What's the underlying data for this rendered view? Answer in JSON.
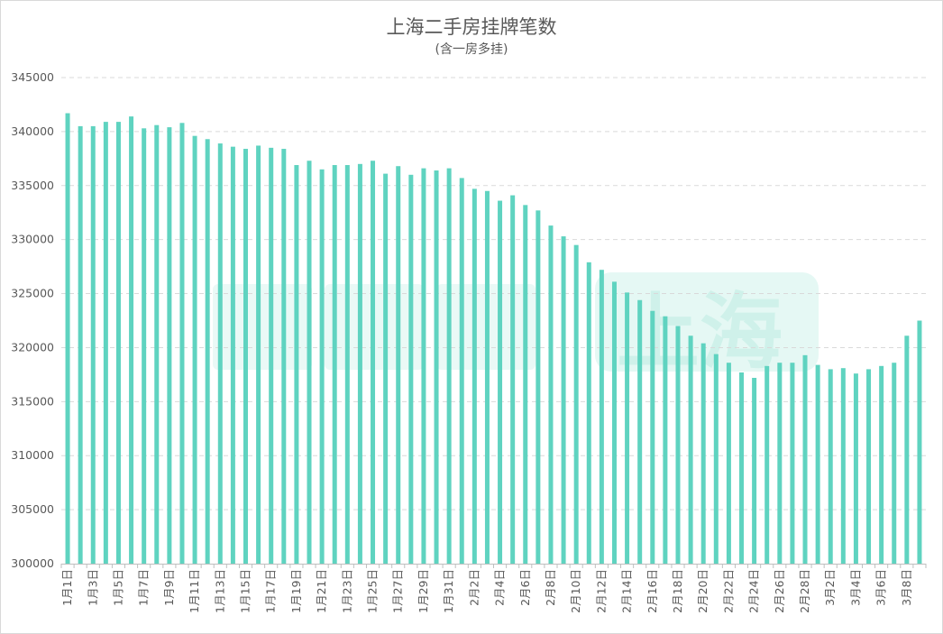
{
  "chart_data": {
    "type": "bar",
    "title": "上海二手房挂牌笔数",
    "subtitle": "(含一房多挂)",
    "xlabel": "",
    "ylabel": "",
    "ylim": [
      300000,
      345000
    ],
    "yticks": [
      "300000",
      "305000",
      "310000",
      "315000",
      "320000",
      "325000",
      "330000",
      "335000",
      "340000",
      "345000"
    ],
    "grid": true,
    "bar_color": "#5fd3c0",
    "categories": [
      "1月1日",
      "1月2日",
      "1月3日",
      "1月4日",
      "1月5日",
      "1月6日",
      "1月7日",
      "1月8日",
      "1月9日",
      "1月10日",
      "1月11日",
      "1月12日",
      "1月13日",
      "1月14日",
      "1月15日",
      "1月16日",
      "1月17日",
      "1月18日",
      "1月19日",
      "1月20日",
      "1月21日",
      "1月22日",
      "1月23日",
      "1月24日",
      "1月25日",
      "1月26日",
      "1月27日",
      "1月28日",
      "1月29日",
      "1月30日",
      "1月31日",
      "2月1日",
      "2月2日",
      "2月3日",
      "2月4日",
      "2月5日",
      "2月6日",
      "2月7日",
      "2月8日",
      "2月9日",
      "2月10日",
      "2月11日",
      "2月12日",
      "2月13日",
      "2月14日",
      "2月15日",
      "2月16日",
      "2月17日",
      "2月18日",
      "2月19日",
      "2月20日",
      "2月21日",
      "2月22日",
      "2月23日",
      "2月24日",
      "2月25日",
      "2月26日",
      "2月27日",
      "2月28日",
      "3月1日",
      "3月2日",
      "3月3日",
      "3月4日",
      "3月5日",
      "3月6日",
      "3月7日",
      "3月8日",
      "3月9日"
    ],
    "x_tick_labels": [
      "1月1日",
      "1月3日",
      "1月5日",
      "1月7日",
      "1月9日",
      "1月11日",
      "1月13日",
      "1月15日",
      "1月17日",
      "1月19日",
      "1月21日",
      "1月23日",
      "1月25日",
      "1月27日",
      "1月29日",
      "1月31日",
      "2月2日",
      "2月4日",
      "2月6日",
      "2月8日",
      "2月10日",
      "2月12日",
      "2月14日",
      "2月16日",
      "2月18日",
      "2月20日",
      "2月22日",
      "2月24日",
      "2月26日",
      "2月28日",
      "3月2日",
      "3月4日",
      "3月6日",
      "3月8日"
    ],
    "values": [
      341700,
      340500,
      340500,
      340900,
      340900,
      341400,
      340300,
      340600,
      340400,
      340800,
      339600,
      339300,
      338900,
      338600,
      338400,
      338700,
      338500,
      338400,
      336900,
      337300,
      336500,
      336900,
      336900,
      337000,
      337300,
      336100,
      336800,
      336000,
      336600,
      336400,
      336600,
      335700,
      334700,
      334500,
      333600,
      334100,
      333200,
      332700,
      331300,
      330300,
      329500,
      327900,
      327200,
      326100,
      325100,
      324400,
      323400,
      322900,
      322000,
      321100,
      320400,
      319400,
      318600,
      317700,
      317200,
      318300,
      318600,
      318600,
      319300,
      318400,
      318000,
      318100,
      317600,
      318000,
      318300,
      318600,
      321100,
      322500
    ]
  },
  "watermark": "上海"
}
